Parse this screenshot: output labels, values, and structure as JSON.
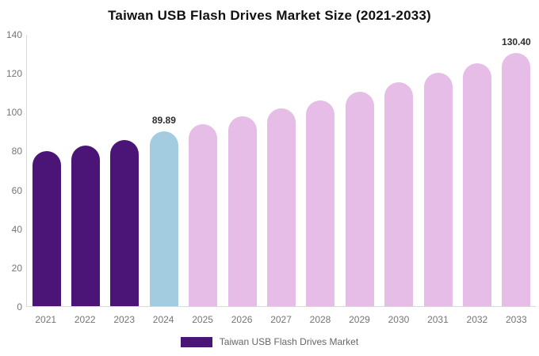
{
  "chart_data": {
    "type": "bar",
    "title": "Taiwan USB Flash Drives Market Size (2021-2033)",
    "categories": [
      "2021",
      "2022",
      "2023",
      "2024",
      "2025",
      "2026",
      "2027",
      "2028",
      "2029",
      "2030",
      "2031",
      "2032",
      "2033"
    ],
    "values": [
      79.6,
      82.5,
      85.4,
      89.89,
      93.7,
      97.6,
      101.8,
      106.0,
      110.5,
      115.2,
      120.0,
      125.1,
      130.4
    ],
    "data_labels": [
      "",
      "",
      "",
      "89.89",
      "",
      "",
      "",
      "",
      "",
      "",
      "",
      "",
      "130.40"
    ],
    "bar_colors": [
      "#4A1577",
      "#4A1577",
      "#4A1577",
      "#A3CCE0",
      "#E5BDE6",
      "#E5BDE6",
      "#E5BDE6",
      "#E5BDE6",
      "#E5BDE6",
      "#E5BDE6",
      "#E5BDE6",
      "#E5BDE6",
      "#E5BDE6"
    ],
    "ylim": [
      0,
      140
    ],
    "yticks": [
      0,
      20,
      40,
      60,
      80,
      100,
      120,
      140
    ],
    "grid": false,
    "xlabel": "",
    "ylabel": "",
    "legend": {
      "position": "bottom",
      "items": [
        {
          "label": "Taiwan USB Flash Drives Market",
          "color": "#4A1577"
        }
      ]
    },
    "style_colors": {
      "historical_bars": "#4A1577",
      "highlight_2024_bar": "#A3CCE0",
      "forecast_bars": "#E5BDE6",
      "axis_line": "#D9D9D9",
      "tick_text": "#757575",
      "value_label_text": "#2E2E2E",
      "title_text": "#111111",
      "legend_text": "#666666",
      "background": "#FFFFFF"
    }
  }
}
